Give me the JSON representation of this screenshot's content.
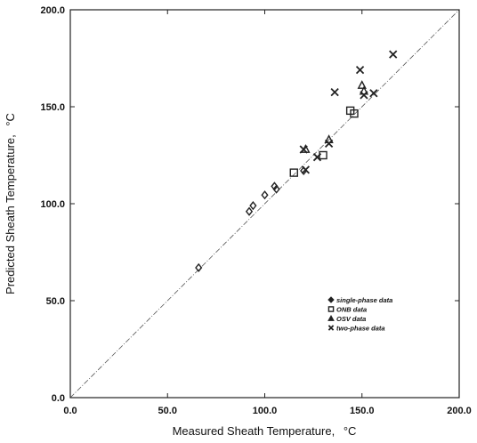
{
  "chart_data": {
    "type": "scatter",
    "title": "",
    "xlabel": "Measured Sheath Temperature,",
    "xlabel_unit": "°C",
    "ylabel": "Predicted Sheath Temperature,",
    "ylabel_unit": "°C",
    "xlim": [
      0,
      200
    ],
    "ylim": [
      0,
      200
    ],
    "x_ticks": [
      "0.0",
      "50.0",
      "100.0",
      "150.0",
      "200.0"
    ],
    "y_ticks": [
      "0.0",
      "50.0",
      "100.0",
      "150.0",
      "200.0"
    ],
    "grid": false,
    "legend_position": "lower-right",
    "reference_line": "y = x",
    "series": [
      {
        "name": "single-phase data",
        "marker": "diamond",
        "points": [
          [
            66,
            67
          ],
          [
            92,
            96
          ],
          [
            94,
            99
          ],
          [
            100,
            104.5
          ],
          [
            105,
            109
          ],
          [
            106,
            107.5
          ],
          [
            120,
            117
          ]
        ]
      },
      {
        "name": "ONB data",
        "marker": "square",
        "points": [
          [
            115,
            116
          ],
          [
            130,
            125
          ],
          [
            144,
            148
          ],
          [
            146,
            146.5
          ]
        ]
      },
      {
        "name": "OSV data",
        "marker": "triangle",
        "points": [
          [
            121,
            128
          ],
          [
            133,
            133
          ],
          [
            150,
            161
          ],
          [
            151,
            158
          ]
        ]
      },
      {
        "name": "two-phase data",
        "marker": "x",
        "points": [
          [
            120,
            128
          ],
          [
            121,
            117.5
          ],
          [
            127,
            124
          ],
          [
            133,
            131
          ],
          [
            136,
            157.5
          ],
          [
            149,
            169
          ],
          [
            151,
            156
          ],
          [
            156,
            157
          ],
          [
            166,
            177
          ]
        ]
      }
    ]
  }
}
